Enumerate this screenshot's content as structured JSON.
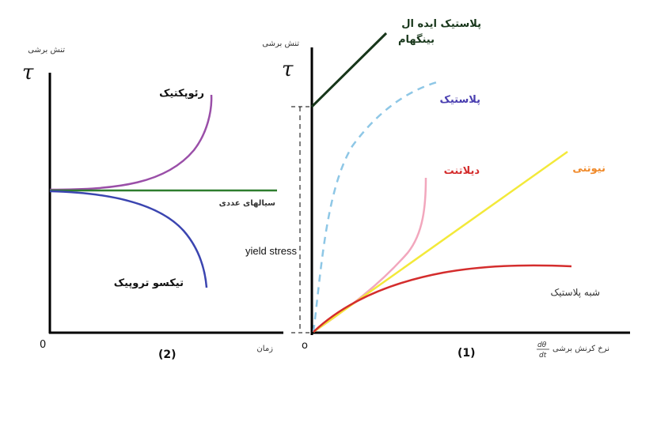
{
  "colors": {
    "axis": "#000000",
    "rheopectic": "#9a4fa8",
    "newtonian_left": "#2e7d2e",
    "thixotropic": "#3b45b0",
    "bingham": "#17361a",
    "plastic": "#8ec7e6",
    "dilatant": "#f2a7bd",
    "newtonian": "#f3e93a",
    "pseudoplastic": "#d42d2d"
  },
  "left": {
    "ylabel_text": "تنش برشی",
    "tau": "τ",
    "origin": "0",
    "xlabel": "زمان",
    "number": "(2)",
    "labels": {
      "rheopectic": "رئوپکتیک",
      "newtonian": "سیالهای عددی",
      "thixotropic": "تیکسو تروپیک"
    }
  },
  "right": {
    "ylabel_text": "تنش برشی",
    "tau": "τ",
    "origin": "o",
    "xlabel": "نرخ کرنش برشی",
    "xlabel_symbol_num": "dθ",
    "xlabel_symbol_den": "dt",
    "number": "(1)",
    "yield_stress": "yield stress",
    "labels": {
      "bingham_line1": "پلاستیک ایده ال",
      "bingham_line2": "بینگهام",
      "plastic": "پلاستیک",
      "dilatant": "دیلاتنت",
      "newtonian": "نیوتنی",
      "pseudoplastic": "شبه پلاستیک"
    }
  }
}
